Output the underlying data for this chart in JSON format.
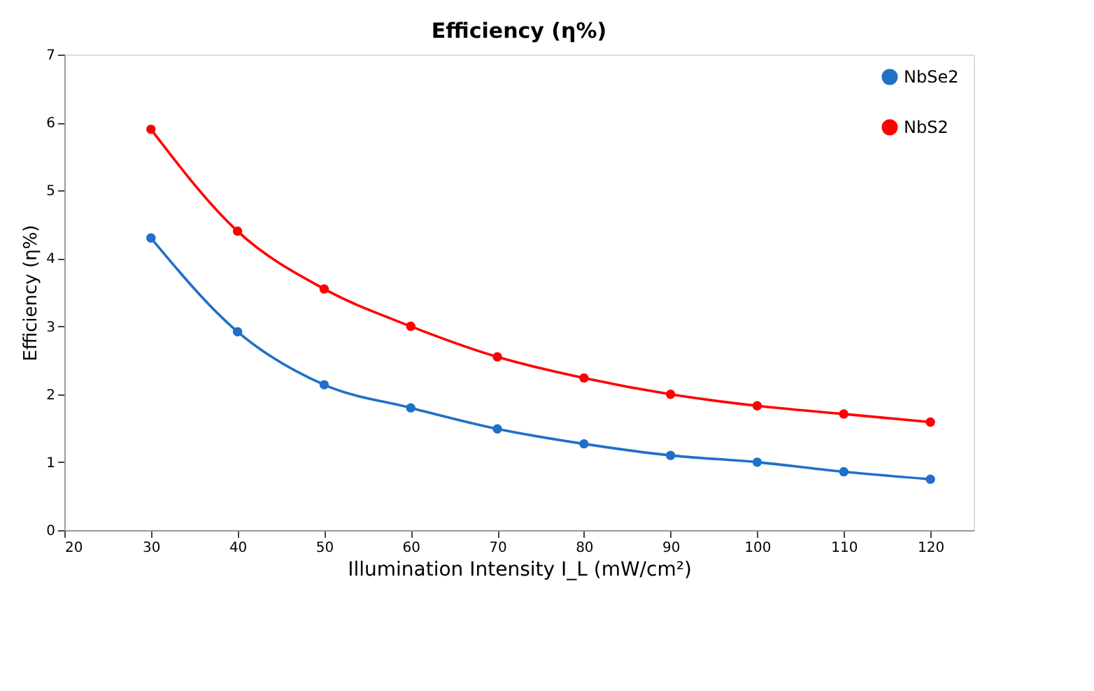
{
  "chart_data": {
    "type": "line",
    "title": "Efficiency (η%)",
    "xlabel": "Illumination Intensity I_L (mW/cm²)",
    "ylabel": "Efficiency (η%)",
    "x": [
      30,
      40,
      50,
      60,
      70,
      80,
      90,
      100,
      110,
      120
    ],
    "series": [
      {
        "name": "NbSe2",
        "color": "#1f70c8",
        "values": [
          4.3,
          2.92,
          2.14,
          1.8,
          1.49,
          1.27,
          1.1,
          1.0,
          0.86,
          0.75
        ]
      },
      {
        "name": "NbS2",
        "color": "#ff0000",
        "values": [
          5.9,
          4.4,
          3.55,
          3.0,
          2.55,
          2.24,
          2.0,
          1.83,
          1.71,
          1.59
        ]
      }
    ],
    "xlim": [
      20,
      125
    ],
    "xticks": [
      20,
      30,
      40,
      50,
      60,
      70,
      80,
      90,
      100,
      110,
      120
    ],
    "ylim": [
      0,
      7
    ],
    "yticks": [
      0,
      1,
      2,
      3,
      4,
      5,
      6,
      7
    ],
    "grid": false,
    "legend": "top right",
    "marker": "circle",
    "line_style": "solid"
  }
}
